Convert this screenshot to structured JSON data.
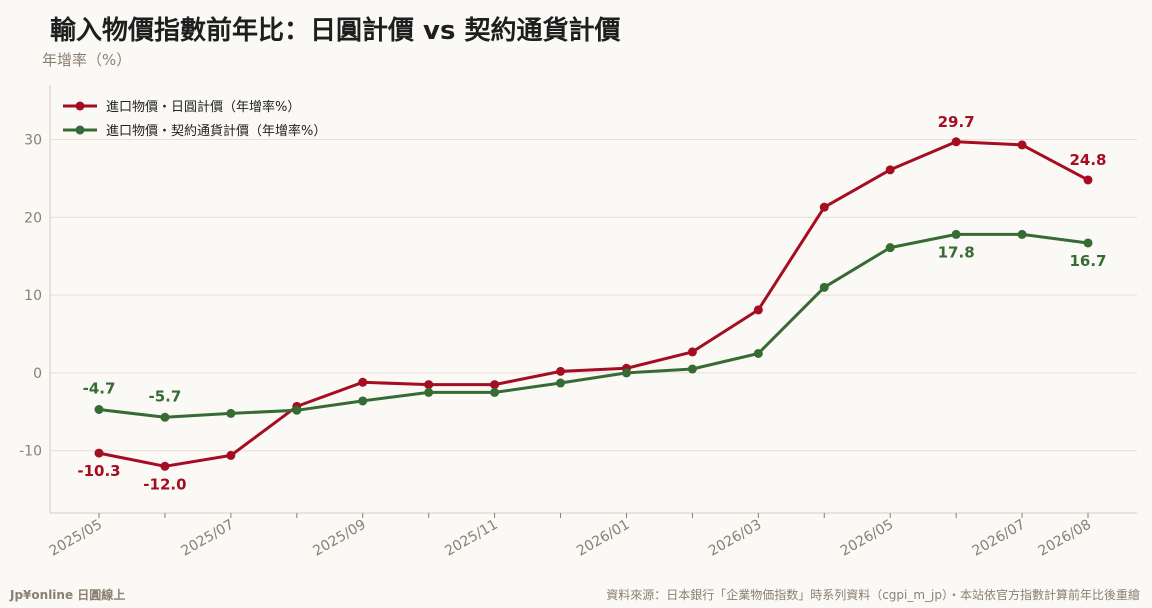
{
  "title": "輸入物價指數前年比：日圓計價 vs 契約通貨計價",
  "ylabel": "年增率（%）",
  "footer": {
    "brand": "Jp¥online 日圓線上",
    "source": "資料來源：日本銀行「企業物価指数」時系列資料（cgpi_m_jp）・本站依官方指數計算前年比後重繪"
  },
  "colors": {
    "jpy": "#a50d22",
    "contract": "#366b33",
    "grid": "#eddcd6",
    "axis": "#d6cfc4",
    "background": "#fbf9f6"
  },
  "chart_data": {
    "type": "line",
    "x": [
      "2025/05",
      "2025/06",
      "2025/07",
      "2025/08",
      "2025/09",
      "2025/10",
      "2025/11",
      "2025/12",
      "2026/01",
      "2026/02",
      "2026/03",
      "2026/04",
      "2026/05",
      "2026/06",
      "2026/07",
      "2026/08"
    ],
    "x_tick_labels": [
      "2025/05",
      "2025/07",
      "2025/09",
      "2025/11",
      "2026/01",
      "2026/03",
      "2026/05",
      "2026/07",
      "2026/08"
    ],
    "ylim": [
      -18,
      37
    ],
    "yticks": [
      -10,
      0,
      10,
      20,
      30
    ],
    "grid": true,
    "legend_position": "top-left",
    "series": [
      {
        "name": "進口物價・日圓計價（年增率%）",
        "color": "#a50d22",
        "values": [
          -10.3,
          -12.0,
          -10.6,
          -4.3,
          -1.2,
          -1.5,
          -1.5,
          0.2,
          0.6,
          2.7,
          8.1,
          21.3,
          26.1,
          29.7,
          29.3,
          24.8
        ],
        "labels": [
          {
            "index": 0,
            "text": "-10.3"
          },
          {
            "index": 1,
            "text": "-12.0"
          },
          {
            "index": 13,
            "text": "29.7"
          },
          {
            "index": 15,
            "text": "24.8"
          }
        ]
      },
      {
        "name": "進口物價・契約通貨計價（年增率%）",
        "color": "#366b33",
        "values": [
          -4.7,
          -5.7,
          -5.2,
          -4.8,
          -3.6,
          -2.5,
          -2.5,
          -1.3,
          0.0,
          0.5,
          2.5,
          11.0,
          16.1,
          17.8,
          17.8,
          16.7
        ],
        "labels": [
          {
            "index": 0,
            "text": "-4.7"
          },
          {
            "index": 1,
            "text": "-5.7"
          },
          {
            "index": 13,
            "text": "17.8"
          },
          {
            "index": 15,
            "text": "16.7"
          }
        ]
      }
    ]
  }
}
